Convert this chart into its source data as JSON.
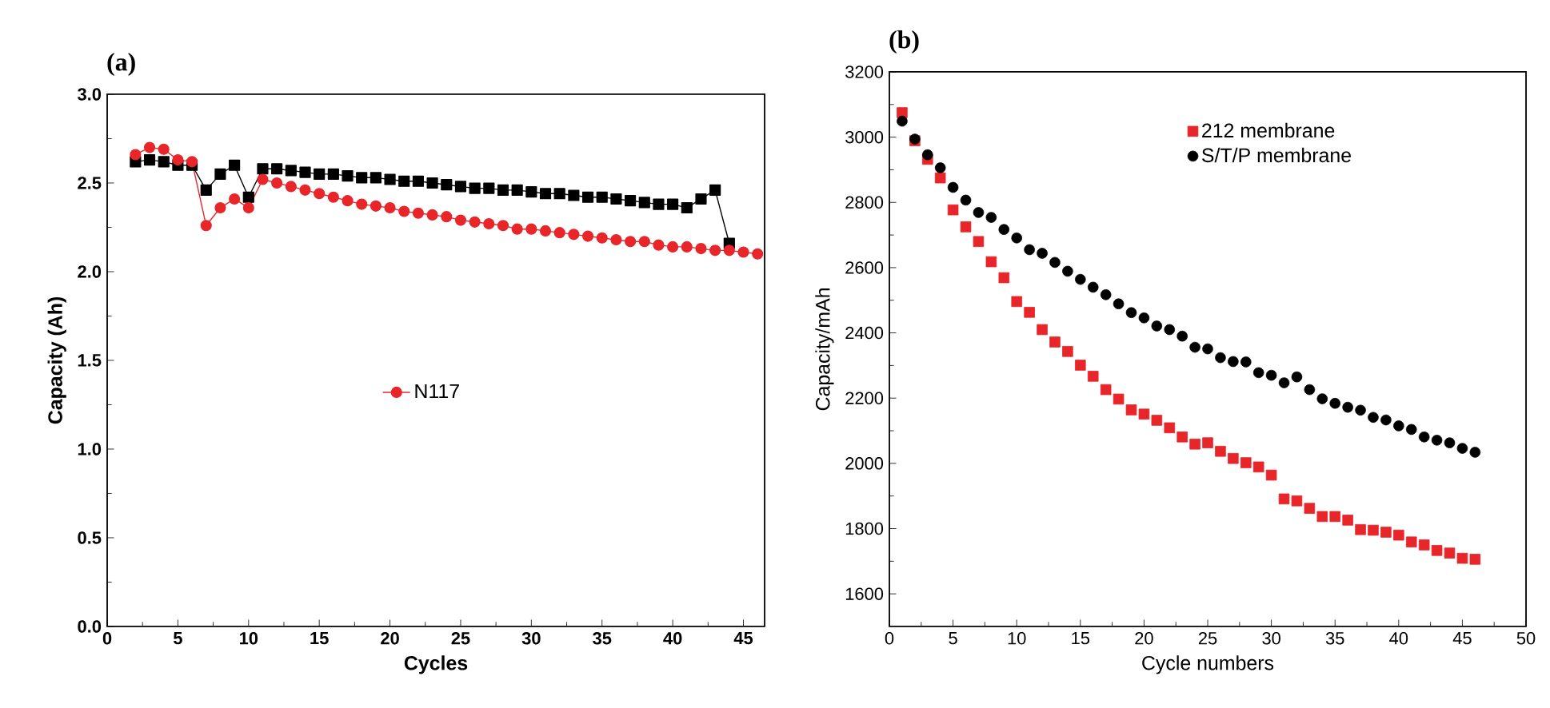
{
  "chart_data": [
    {
      "type": "line",
      "title": "(a)",
      "xlabel": "Cycles",
      "ylabel": "Capacity (Ah)",
      "xlim": [
        0,
        46.5
      ],
      "ylim": [
        0,
        3
      ],
      "xticks": [
        0,
        5,
        10,
        15,
        20,
        25,
        30,
        35,
        40,
        45
      ],
      "yticks": [
        {
          "value": 0,
          "label": "0.0"
        },
        0.5,
        {
          "value": 1,
          "label": "1.0"
        },
        1.5,
        {
          "value": 2,
          "label": "2.0"
        },
        2.5,
        {
          "value": 3,
          "label": "3.0"
        }
      ],
      "legend": "center",
      "line_style": "solid",
      "series": [
        {
          "color": "#000000",
          "marker": "square",
          "x": [
            2,
            3,
            4,
            5,
            6,
            7,
            8,
            9,
            10,
            11,
            12,
            13,
            14,
            15,
            16,
            17,
            18,
            19,
            20,
            21,
            22,
            23,
            24,
            25,
            26,
            27,
            28,
            29,
            30,
            31,
            32,
            33,
            34,
            35,
            36,
            37,
            38,
            39,
            40,
            41,
            42,
            43,
            44
          ],
          "values": [
            2.62,
            2.63,
            2.62,
            2.6,
            2.6,
            2.46,
            2.55,
            2.6,
            2.42,
            2.58,
            2.58,
            2.57,
            2.56,
            2.55,
            2.55,
            2.54,
            2.53,
            2.53,
            2.52,
            2.51,
            2.51,
            2.5,
            2.49,
            2.48,
            2.47,
            2.47,
            2.46,
            2.46,
            2.45,
            2.44,
            2.44,
            2.43,
            2.42,
            2.42,
            2.41,
            2.4,
            2.39,
            2.38,
            2.38,
            2.36,
            2.41,
            2.46,
            2.16
          ]
        },
        {
          "name": "N117",
          "color": "#e8262a",
          "marker": "circle",
          "x": [
            2,
            3,
            4,
            5,
            6,
            7,
            8,
            9,
            10,
            11,
            12,
            13,
            14,
            15,
            16,
            17,
            18,
            19,
            20,
            21,
            22,
            23,
            24,
            25,
            26,
            27,
            28,
            29,
            30,
            31,
            32,
            33,
            34,
            35,
            36,
            37,
            38,
            39,
            40,
            41,
            42,
            43,
            44,
            45,
            46
          ],
          "values": [
            2.66,
            2.7,
            2.69,
            2.63,
            2.62,
            2.26,
            2.36,
            2.41,
            2.36,
            2.52,
            2.5,
            2.48,
            2.46,
            2.44,
            2.42,
            2.4,
            2.38,
            2.37,
            2.36,
            2.34,
            2.33,
            2.32,
            2.31,
            2.29,
            2.28,
            2.27,
            2.26,
            2.24,
            2.24,
            2.23,
            2.22,
            2.21,
            2.2,
            2.19,
            2.18,
            2.17,
            2.17,
            2.15,
            2.14,
            2.14,
            2.13,
            2.12,
            2.12,
            2.11,
            2.1
          ]
        }
      ]
    },
    {
      "type": "scatter",
      "title": "(b)",
      "xlabel": "Cycle numbers",
      "ylabel": "Capacity/mAh",
      "xlim": [
        0,
        50
      ],
      "ylim": [
        1500,
        3200
      ],
      "xticks": [
        0,
        5,
        10,
        15,
        20,
        25,
        30,
        35,
        40,
        45,
        50
      ],
      "yticks": [
        1600,
        1800,
        2000,
        2200,
        2400,
        2600,
        2800,
        3000,
        3200
      ],
      "legend": "top",
      "x": [
        1,
        2,
        3,
        4,
        5,
        6,
        7,
        8,
        9,
        10,
        11,
        12,
        13,
        14,
        15,
        16,
        17,
        18,
        19,
        20,
        21,
        22,
        23,
        24,
        25,
        26,
        27,
        28,
        29,
        30,
        31,
        32,
        33,
        34,
        35,
        36,
        37,
        38,
        39,
        40,
        41,
        42,
        43,
        44,
        45,
        46
      ],
      "series": [
        {
          "name": "212 membrane",
          "color": "#e8262a",
          "marker": "square",
          "values": [
            3075,
            2989,
            2932,
            2875,
            2777,
            2725,
            2680,
            2618,
            2569,
            2496,
            2463,
            2410,
            2372,
            2343,
            2301,
            2267,
            2226,
            2197,
            2164,
            2151,
            2132,
            2109,
            2081,
            2059,
            2063,
            2037,
            2015,
            2002,
            1989,
            1964,
            1891,
            1885,
            1862,
            1837,
            1837,
            1826,
            1797,
            1795,
            1789,
            1780,
            1759,
            1750,
            1733,
            1725,
            1709,
            1706
          ]
        },
        {
          "name": "S/T/P membrane",
          "color": "#000000",
          "marker": "circle",
          "values": [
            3049,
            2994,
            2946,
            2906,
            2846,
            2807,
            2769,
            2754,
            2717,
            2691,
            2655,
            2644,
            2616,
            2589,
            2564,
            2540,
            2517,
            2489,
            2462,
            2446,
            2421,
            2410,
            2390,
            2356,
            2351,
            2324,
            2312,
            2311,
            2278,
            2270,
            2247,
            2265,
            2226,
            2198,
            2184,
            2172,
            2163,
            2141,
            2133,
            2115,
            2104,
            2081,
            2071,
            2063,
            2046,
            2034
          ]
        }
      ]
    }
  ]
}
